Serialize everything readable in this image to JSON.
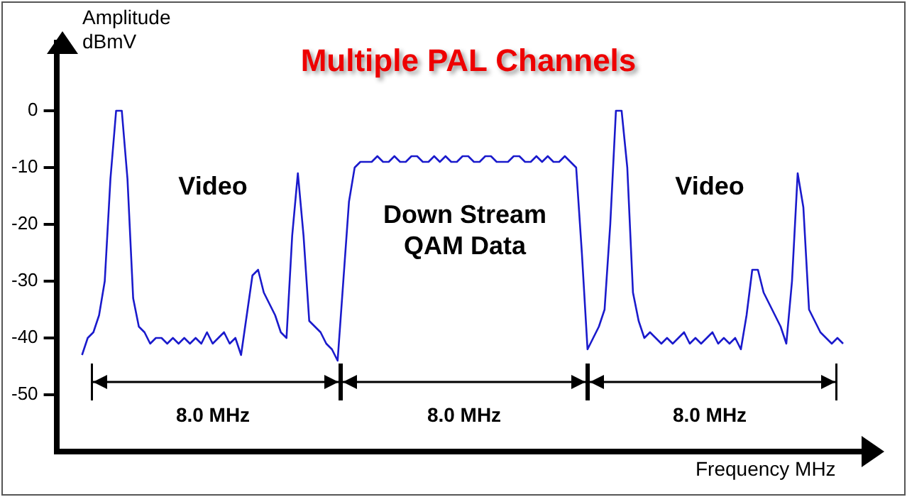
{
  "chart_data": {
    "type": "line",
    "title": "Multiple PAL Channels",
    "xlabel": "Frequency MHz",
    "ylabel": "Amplitude dBmV",
    "annotations": [
      "Video",
      "Down Stream QAM Data",
      "Video",
      "8.0 MHz",
      "8.0 MHz",
      "8.0 MHz"
    ],
    "categories": [
      null,
      null,
      null,
      null,
      null,
      null,
      null,
      null,
      null,
      null,
      null,
      null,
      null,
      null,
      null,
      null,
      null,
      null,
      null,
      null,
      null,
      null,
      null,
      null,
      null,
      null,
      null,
      null,
      null,
      null,
      null,
      null,
      null,
      null,
      null,
      null,
      null,
      null,
      null,
      null,
      null,
      null,
      null,
      null,
      null,
      null,
      null,
      null,
      null,
      null,
      null,
      null,
      null,
      null,
      null,
      null,
      null,
      null,
      null,
      null,
      null,
      null,
      null,
      null,
      null,
      null,
      null,
      null,
      null,
      null,
      null,
      null,
      null,
      null,
      null,
      null,
      null,
      null,
      null,
      null,
      null,
      null,
      null,
      null,
      null,
      null,
      null,
      null,
      null,
      null,
      null,
      null,
      null,
      null,
      null,
      null,
      null,
      null,
      null,
      null,
      null,
      null,
      null,
      null,
      null,
      null,
      null,
      null,
      null,
      null,
      null,
      null,
      null,
      null,
      null,
      null,
      null,
      null,
      null,
      null,
      null,
      null,
      null,
      null,
      null,
      null,
      null,
      null,
      null,
      null,
      null,
      null,
      null,
      null,
      null
    ],
    "series": [
      {
        "color": "#1a1acc",
        "values": [
          -43,
          -40,
          -39,
          -36,
          -30,
          -12,
          0,
          0,
          -12,
          -33,
          -38,
          -39,
          -41,
          -40,
          -40,
          -41,
          -40,
          -41,
          -40,
          -41,
          -40,
          -41,
          -39,
          -41,
          -40,
          -39,
          -41,
          -40,
          -43,
          -36,
          -29,
          -28,
          -32,
          -34,
          -36,
          -39,
          -40,
          -22,
          -11,
          -22,
          -37,
          -38,
          -39,
          -41,
          -42,
          -44,
          -30,
          -16,
          -10,
          -9,
          -9,
          -9,
          -8,
          -9,
          -9,
          -8,
          -9,
          -9,
          -8,
          -8,
          -9,
          -9,
          -8,
          -9,
          -8,
          -9,
          -9,
          -8,
          -8,
          -9,
          -9,
          -8,
          -8,
          -9,
          -9,
          -9,
          -8,
          -8,
          -9,
          -9,
          -8,
          -9,
          -8,
          -9,
          -9,
          -8,
          -9,
          -10,
          -25,
          -42,
          -40,
          -38,
          -35,
          -20,
          0,
          0,
          -10,
          -32,
          -37,
          -40,
          -39,
          -40,
          -41,
          -40,
          -41,
          -40,
          -39,
          -41,
          -40,
          -41,
          -40,
          -39,
          -41,
          -40,
          -41,
          -40,
          -42,
          -36,
          -28,
          -28,
          -32,
          -34,
          -36,
          -38,
          -41,
          -30,
          -11,
          -17,
          -35,
          -37,
          -39,
          -40,
          -41,
          -40,
          -41
        ]
      }
    ],
    "ylim": [
      -60,
      12
    ],
    "yticks": [
      0,
      -10,
      -20,
      -30,
      -40,
      -50
    ],
    "tick_labels": "y"
  }
}
